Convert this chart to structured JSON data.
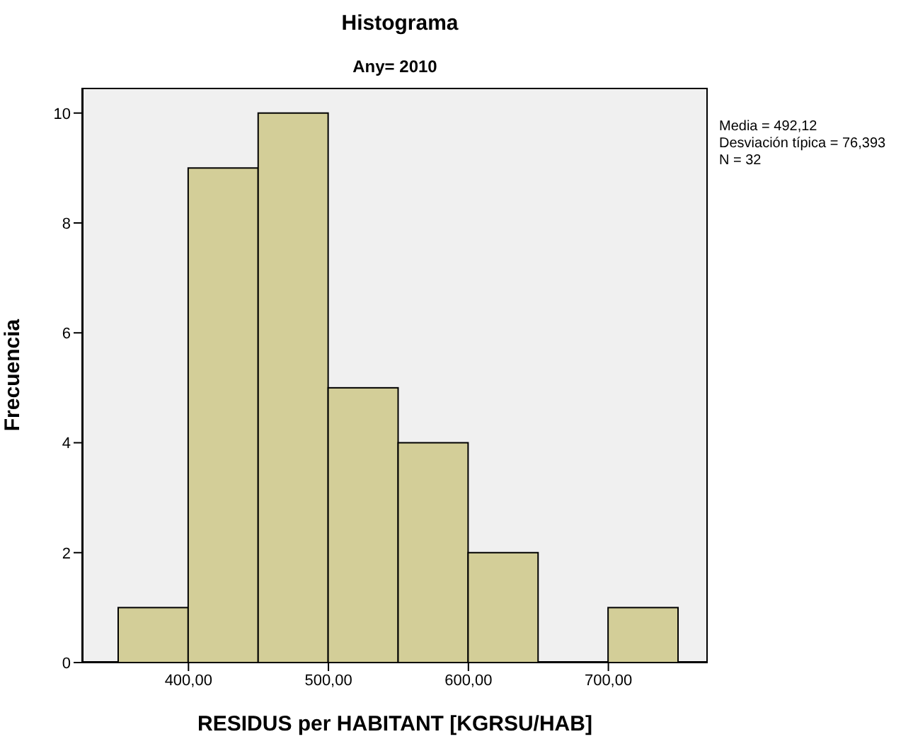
{
  "chart_data": {
    "type": "histogram",
    "title": "Histograma",
    "subtitle": "Any= 2010",
    "xlabel": "RESIDUS per HABITANT [KGRSU/HAB]",
    "ylabel": "Frecuencia",
    "bins": [
      350,
      400,
      450,
      500,
      550,
      600,
      650,
      700,
      750
    ],
    "values": [
      1,
      9,
      10,
      5,
      4,
      2,
      0,
      1
    ],
    "color": "#d3ce98",
    "xlim": [
      324,
      771
    ],
    "xticks": [
      {
        "value": 400,
        "label": "400,00"
      },
      {
        "value": 500,
        "label": "500,00"
      },
      {
        "value": 600,
        "label": "600,00"
      },
      {
        "value": 700,
        "label": "700,00"
      }
    ],
    "ylim": [
      0,
      10.46
    ],
    "yticks": [
      0,
      2,
      4,
      6,
      8,
      10
    ],
    "annotations": [
      "Media = 492,12",
      "Desviación típica = 76,393",
      "N = 32"
    ]
  }
}
